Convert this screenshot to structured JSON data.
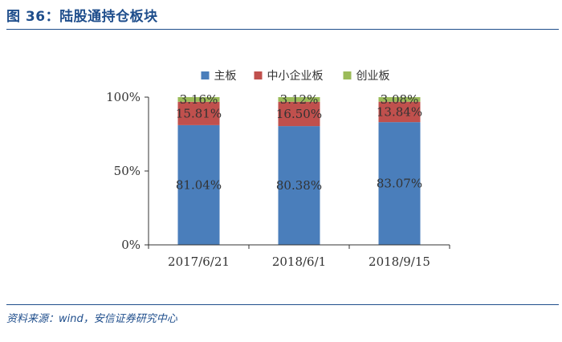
{
  "header": {
    "title": "图 36：陆股通持仓板块"
  },
  "footer": {
    "source": "资料来源：wind，安信证券研究中心"
  },
  "chart_data": {
    "type": "bar",
    "stacked": true,
    "categories": [
      "2017/6/21",
      "2018/6/1",
      "2018/9/15"
    ],
    "series": [
      {
        "name": "主板",
        "color": "#4a7ebb",
        "values": [
          81.04,
          80.38,
          83.07
        ],
        "labels": [
          "81.04%",
          "80.38%",
          "83.07%"
        ]
      },
      {
        "name": "中小企业板",
        "color": "#c0504d",
        "values": [
          15.81,
          16.5,
          13.84
        ],
        "labels": [
          "15.81%",
          "16.50%",
          "13.84%"
        ]
      },
      {
        "name": "创业板",
        "color": "#9bbb59",
        "values": [
          3.16,
          3.12,
          3.08
        ],
        "labels": [
          "3.16%",
          "3.12%",
          "3.08%"
        ]
      }
    ],
    "ylim": [
      0,
      100
    ],
    "yticks": [
      0,
      50,
      100
    ],
    "ytick_labels": [
      "0%",
      "50%",
      "100%"
    ],
    "legend_position": "top",
    "grid": false
  }
}
